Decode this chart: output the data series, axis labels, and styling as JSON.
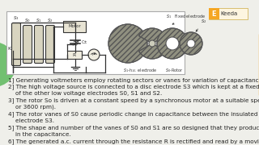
{
  "bg_color": "#efefea",
  "text_lines": [
    "1] Generating voltmeters employ rotating sectors or vanes for variation of capacitance.",
    "2] The high voltage source is connected to a disc electrode S3 which is kept at a fixed distance on the axis",
    "    of the other low voltage electrodes S0, S1 and S2.",
    "3] The rotor So is driven at a constant speed by a synchronous motor at a suitable speed (1500,1800,3000,",
    "    or 3600 rpm).",
    "4] The rotor vanes of S0 cause periodic change in capacitance between the insulated disc S2 and the h.v",
    "    electrode S3.",
    "5] The shape and number of the vanes of S0 and S1 are so designed that they produce sinusoidal variation",
    "    in the capacitance.",
    "6] The generated a.c. current through the resistance R is rectified and read by a moving coil instrument."
  ],
  "accent_left": "#4caf50",
  "accent_right": "#f5a623",
  "keeda_color": "#f5a623",
  "text_color": "#222222",
  "font_size": 5.2,
  "diagram_border": "#aaaaaa",
  "circuit_color": "#333333",
  "disc_fill": "#a0a090",
  "disc_edge": "#555555"
}
